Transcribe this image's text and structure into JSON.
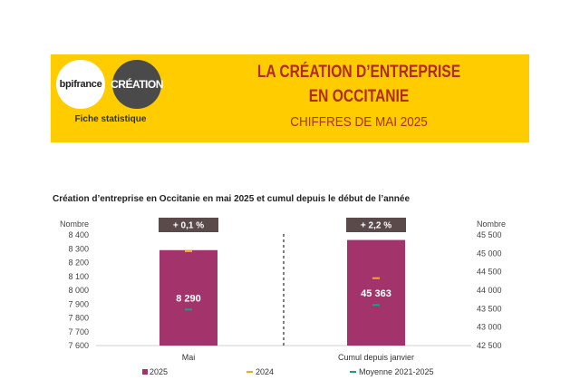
{
  "header": {
    "logo_left": "bpifrance",
    "logo_right": "CRÉATION",
    "subtitle": "Fiche statistique",
    "title_line1": "LA CRÉATION D’ENTREPRISE",
    "title_line2": "EN OCCITANIE",
    "title_line3": "CHIFFRES DE MAI 2025"
  },
  "colors": {
    "banner": "#FFCC00",
    "bar_2025": "#A3346B",
    "marker_2024": "#F5A623",
    "marker_avg": "#1E9E7E",
    "pct_badge": "#5A4A4A"
  },
  "chart_data": {
    "type": "bar",
    "title": "Création d’entreprise en Occitanie en mai 2025 et cumul depuis le début de l’année",
    "categories": [
      "Mai",
      "Cumul depuis janvier"
    ],
    "left_axis": {
      "label": "Nombre",
      "ylim": [
        7600,
        8400
      ],
      "ticks": [
        "8 400",
        "8 300",
        "8 200",
        "8 100",
        "8 000",
        "7 900",
        "7 800",
        "7 700",
        "7 600"
      ]
    },
    "right_axis": {
      "label": "Nombre",
      "ylim": [
        42500,
        45500
      ],
      "ticks": [
        "45 500",
        "45 000",
        "44 500",
        "44 000",
        "43 500",
        "43 000",
        "42 500"
      ]
    },
    "series": [
      {
        "name": "2025",
        "values": [
          8290,
          45363
        ],
        "labels": [
          "8 290",
          "45 363"
        ]
      },
      {
        "name": "2024",
        "values": [
          8282,
          44326
        ]
      },
      {
        "name": "Moyenne 2021-2025",
        "values": [
          7860,
          43600
        ]
      }
    ],
    "annotations": [
      "+ 0,1 %",
      "+ 2,2 %"
    ],
    "legend": [
      "2025",
      "2024",
      "Moyenne 2021-2025"
    ],
    "legend_position": "bottom"
  }
}
